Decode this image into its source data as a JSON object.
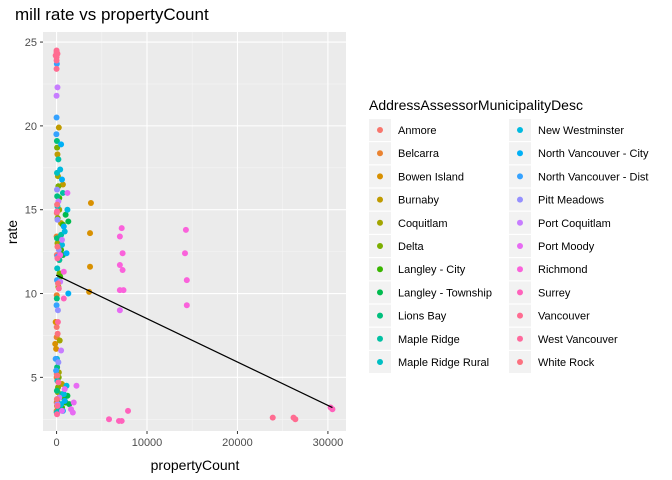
{
  "chart_data": {
    "type": "scatter",
    "title": "mill rate vs propertyCount",
    "xlabel": "propertyCount",
    "ylabel": "rate",
    "xlim": [
      -1500,
      32000
    ],
    "ylim": [
      1.8,
      25.6
    ],
    "x_ticks": [
      0,
      10000,
      20000,
      30000
    ],
    "x_tick_labels": [
      "0",
      "10000",
      "20000",
      "30000"
    ],
    "y_ticks": [
      5,
      10,
      15,
      20,
      25
    ],
    "y_tick_labels": [
      "5",
      "10",
      "15",
      "20",
      "25"
    ],
    "grid": true,
    "legend_title": "AddressAssessorMunicipalityDesc",
    "legend_position": "right",
    "series": [
      {
        "name": "Anmore",
        "color": "#F8766D",
        "points": [
          [
            10,
            3.5
          ],
          [
            20,
            5.2
          ],
          [
            15,
            8.0
          ],
          [
            30,
            12.3
          ],
          [
            25,
            14.8
          ]
        ]
      },
      {
        "name": "Belcarra",
        "color": "#EA8331",
        "points": [
          [
            5,
            3.0
          ],
          [
            10,
            5.0
          ],
          [
            12,
            7.4
          ],
          [
            20,
            9.9
          ],
          [
            8,
            13.4
          ]
        ]
      },
      {
        "name": "Bowen Island",
        "color": "#D89000",
        "points": [
          [
            -150,
            7.0
          ],
          [
            -100,
            8.3
          ],
          [
            -50,
            6.7
          ],
          [
            3800,
            15.4
          ],
          [
            3700,
            13.6
          ],
          [
            3700,
            11.6
          ],
          [
            3600,
            10.1
          ]
        ]
      },
      {
        "name": "Burnaby",
        "color": "#C09B00",
        "points": [
          [
            200,
            3.1
          ],
          [
            400,
            3.9
          ],
          [
            600,
            4.6
          ],
          [
            300,
            12.0
          ],
          [
            500,
            14.2
          ],
          [
            700,
            16.5
          ],
          [
            100,
            18.3
          ],
          [
            250,
            19.9
          ]
        ]
      },
      {
        "name": "Coquitlam",
        "color": "#A3A500",
        "points": [
          [
            50,
            3.3
          ],
          [
            150,
            4.1
          ],
          [
            250,
            5.3
          ],
          [
            350,
            7.2
          ],
          [
            200,
            10.4
          ],
          [
            100,
            13.0
          ],
          [
            300,
            15.0
          ],
          [
            150,
            17.0
          ]
        ]
      },
      {
        "name": "Delta",
        "color": "#7CAE00",
        "points": [
          [
            80,
            3.6
          ],
          [
            160,
            4.4
          ],
          [
            240,
            5.0
          ],
          [
            320,
            11.2
          ],
          [
            400,
            12.7
          ],
          [
            120,
            14.5
          ],
          [
            200,
            16.4
          ],
          [
            60,
            18.7
          ]
        ]
      },
      {
        "name": "Langley - City",
        "color": "#39B600",
        "points": [
          [
            600,
            3.2
          ],
          [
            800,
            3.8
          ],
          [
            1000,
            3.5
          ],
          [
            400,
            11.0
          ],
          [
            500,
            12.6
          ],
          [
            700,
            14.1
          ],
          [
            300,
            15.7
          ]
        ]
      },
      {
        "name": "Langley - Township",
        "color": "#00BB4E",
        "points": [
          [
            900,
            3.6
          ],
          [
            1200,
            3.9
          ],
          [
            1400,
            3.4
          ],
          [
            700,
            12.3
          ],
          [
            1000,
            14.7
          ],
          [
            1300,
            14.3
          ]
        ]
      },
      {
        "name": "Lions Bay",
        "color": "#00BF7D",
        "points": [
          [
            20,
            2.9
          ],
          [
            40,
            4.2
          ],
          [
            60,
            5.6
          ],
          [
            30,
            9.7
          ],
          [
            50,
            13.3
          ],
          [
            70,
            15.8
          ],
          [
            40,
            19.1
          ]
        ]
      },
      {
        "name": "Maple Ridge",
        "color": "#00C1A3",
        "points": [
          [
            200,
            3.0
          ],
          [
            400,
            3.3
          ],
          [
            600,
            4.0
          ],
          [
            300,
            12.0
          ],
          [
            500,
            13.5
          ],
          [
            700,
            16.0
          ],
          [
            200,
            18.0
          ]
        ]
      },
      {
        "name": "Maple Ridge Rural",
        "color": "#00BFC4",
        "points": [
          [
            30,
            2.9
          ],
          [
            60,
            3.7
          ],
          [
            90,
            4.8
          ],
          [
            40,
            6.1
          ],
          [
            70,
            11.5
          ],
          [
            100,
            15.2
          ],
          [
            50,
            17.2
          ]
        ]
      },
      {
        "name": "New Westminster",
        "color": "#00BAE0",
        "points": [
          [
            500,
            3.4
          ],
          [
            800,
            4.0
          ],
          [
            1100,
            4.5
          ],
          [
            600,
            12.9
          ],
          [
            900,
            13.7
          ],
          [
            1200,
            15.0
          ],
          [
            400,
            17.4
          ]
        ]
      },
      {
        "name": "North Vancouver - City",
        "color": "#00B0F6",
        "points": [
          [
            700,
            3.0
          ],
          [
            900,
            3.6
          ],
          [
            1300,
            10.0
          ],
          [
            1100,
            12.4
          ],
          [
            800,
            14.0
          ],
          [
            600,
            16.8
          ],
          [
            500,
            18.9
          ]
        ]
      },
      {
        "name": "North Vancouver - Dist",
        "color": "#35A2FF",
        "points": [
          [
            -50,
            5.4
          ],
          [
            -100,
            6.1
          ],
          [
            0,
            9.3
          ],
          [
            50,
            10.8
          ],
          [
            100,
            12.2
          ],
          [
            -20,
            19.5
          ],
          [
            0,
            20.5
          ],
          [
            30,
            23.7
          ]
        ]
      },
      {
        "name": "Pitt Meadows",
        "color": "#9590FF",
        "points": [
          [
            100,
            3.4
          ],
          [
            200,
            5.9
          ],
          [
            150,
            9.0
          ],
          [
            250,
            12.6
          ],
          [
            100,
            14.4
          ],
          [
            50,
            16.2
          ]
        ]
      },
      {
        "name": "Port Coquitlam",
        "color": "#C77CFF",
        "points": [
          [
            300,
            3.8
          ],
          [
            500,
            6.6
          ],
          [
            400,
            10.7
          ],
          [
            600,
            13.2
          ],
          [
            200,
            15.5
          ],
          [
            100,
            22.3
          ],
          [
            0,
            21.8
          ]
        ]
      },
      {
        "name": "Port Moody",
        "color": "#E76BF3",
        "points": [
          [
            600,
            3.0
          ],
          [
            900,
            4.3
          ],
          [
            1600,
            3.1
          ],
          [
            1900,
            3.5
          ],
          [
            2200,
            4.5
          ],
          [
            1800,
            2.9
          ],
          [
            7000,
            9.0
          ],
          [
            1200,
            16.0
          ]
        ]
      },
      {
        "name": "Richmond",
        "color": "#FA62DB",
        "points": [
          [
            7200,
            13.9
          ],
          [
            7000,
            13.4
          ],
          [
            7300,
            12.4
          ],
          [
            7300,
            11.4
          ],
          [
            7000,
            11.7
          ],
          [
            7400,
            10.2
          ],
          [
            7000,
            10.2
          ],
          [
            400,
            12.3
          ],
          [
            800,
            11.3
          ],
          [
            14300,
            13.8
          ],
          [
            14200,
            12.4
          ],
          [
            14400,
            10.8
          ],
          [
            14400,
            9.3
          ]
        ]
      },
      {
        "name": "Surrey",
        "color": "#FF62BC",
        "points": [
          [
            30500,
            3.1
          ],
          [
            30300,
            3.2
          ],
          [
            800,
            9.7
          ],
          [
            5800,
            2.5
          ],
          [
            6900,
            2.4
          ],
          [
            7200,
            2.4
          ],
          [
            7900,
            3.0
          ]
        ]
      },
      {
        "name": "Vancouver",
        "color": "#FF6C91",
        "points": [
          [
            23900,
            2.6
          ],
          [
            26200,
            2.6
          ],
          [
            26400,
            2.5
          ],
          [
            0,
            24.4
          ],
          [
            0,
            24.1
          ],
          [
            0,
            23.9
          ],
          [
            0,
            23.4
          ],
          [
            0,
            24.5
          ],
          [
            -100,
            24.2
          ],
          [
            100,
            24.3
          ]
        ]
      },
      {
        "name": "West Vancouver",
        "color": "#FF699C",
        "points": [
          [
            50,
            2.8
          ],
          [
            100,
            3.3
          ],
          [
            200,
            4.7
          ],
          [
            150,
            8.3
          ],
          [
            250,
            10.3
          ],
          [
            100,
            12.1
          ],
          [
            50,
            14.9
          ]
        ]
      },
      {
        "name": "White Rock",
        "color": "#FC717F",
        "points": [
          [
            40,
            3.7
          ],
          [
            80,
            5.1
          ],
          [
            120,
            7.6
          ],
          [
            160,
            10.6
          ],
          [
            100,
            12.8
          ],
          [
            60,
            15.3
          ]
        ]
      }
    ],
    "trend_line": {
      "x": [
        -50,
        30500
      ],
      "y": [
        11.1,
        3.2
      ],
      "color": "#000000"
    }
  }
}
